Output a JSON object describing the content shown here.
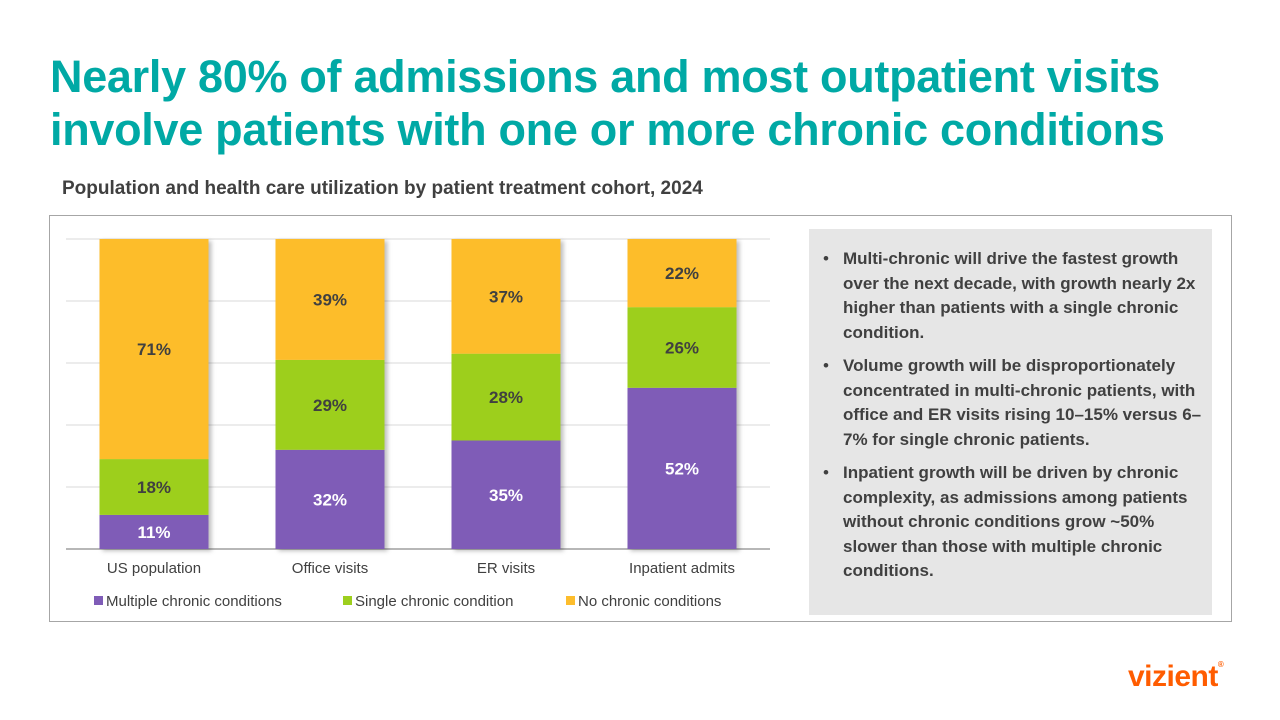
{
  "header": {
    "title": "Nearly 80% of admissions and most outpatient visits involve patients with one or more chronic conditions",
    "subtitle": "Population and health care utilization by patient treatment cohort, 2024"
  },
  "colors": {
    "accent": "#00a9a5",
    "multiple": "#7f5cb7",
    "single": "#9dcf1e",
    "none": "#fdbd2c",
    "logo": "#ff5c00"
  },
  "chart_data": {
    "type": "bar",
    "stacked": true,
    "categories": [
      "US population",
      "Office visits",
      "ER visits",
      "Inpatient admits"
    ],
    "series": [
      {
        "name": "Multiple chronic conditions",
        "values": [
          11,
          32,
          35,
          52
        ],
        "labels": [
          "11%",
          "32%",
          "35%",
          "52%"
        ],
        "color": "#7f5cb7"
      },
      {
        "name": "Single chronic condition",
        "values": [
          18,
          29,
          28,
          26
        ],
        "labels": [
          "18%",
          "29%",
          "28%",
          "26%"
        ],
        "color": "#9dcf1e"
      },
      {
        "name": "No chronic conditions",
        "values": [
          71,
          39,
          37,
          22
        ],
        "labels": [
          "71%",
          "39%",
          "37%",
          "22%"
        ],
        "color": "#fdbd2c"
      }
    ],
    "ylim": [
      0,
      100
    ],
    "yticks": [
      0,
      20,
      40,
      60,
      80,
      100
    ],
    "grid": true,
    "y_axis_labels_shown": false,
    "legend": "bottom"
  },
  "panel": {
    "bullets": [
      "Multi-chronic will drive the fastest growth over the next decade, with growth nearly 2x higher than patients with a single chronic condition.",
      "Volume growth will be disproportionately concentrated in multi-chronic patients, with office and ER visits rising 10–15% versus 6–7% for single chronic patients.",
      "Inpatient growth will be driven by chronic complexity, as admissions among patients without chronic conditions grow ~50% slower than those with multiple chronic conditions."
    ],
    "bullet_char": "•"
  },
  "logo": {
    "text": "vizient",
    "mark": "®"
  }
}
